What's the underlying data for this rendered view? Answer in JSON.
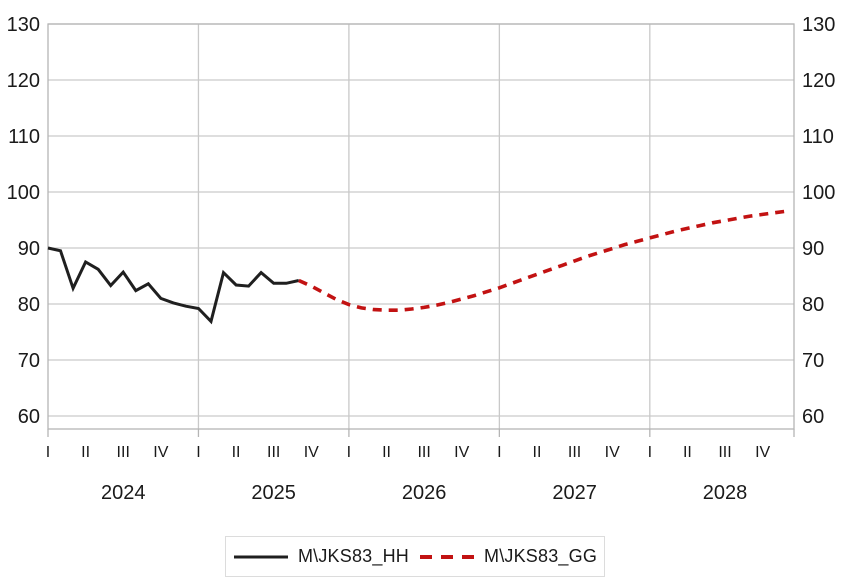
{
  "chart_data": {
    "type": "line",
    "title": "",
    "frequency": "monthly",
    "x_axis": {
      "quarter_tick_labels": [
        "I",
        "II",
        "III",
        "IV"
      ],
      "year_labels": [
        "2024",
        "2025",
        "2026",
        "2027",
        "2028"
      ],
      "start": "2024 Q1",
      "end": "2028 Q4"
    },
    "y_axis": {
      "min": 60,
      "max": 130,
      "step": 10,
      "tick_labels": [
        "130",
        "120",
        "110",
        "100",
        "90",
        "80",
        "70",
        "60"
      ],
      "labels_on_both_sides": true
    },
    "grid": true,
    "legend_position": "bottom",
    "series": [
      {
        "name": "M\\JKS83_HH",
        "style": "solid",
        "color": "#1f1f1f",
        "start_index": 0,
        "range": "2024M01-2025M09",
        "values": [
          90.0,
          89.5,
          82.8,
          87.5,
          86.2,
          83.3,
          85.7,
          82.4,
          83.6,
          81.0,
          80.2,
          79.6,
          79.2,
          76.9,
          85.6,
          83.4,
          83.2,
          85.6,
          83.7,
          83.7,
          84.2
        ]
      },
      {
        "name": "M\\JKS83_GG",
        "style": "dashed",
        "color": "#c21212",
        "start_index": 20,
        "range": "2025M09-2028M12",
        "values": [
          84.2,
          83.2,
          82.0,
          80.8,
          79.9,
          79.3,
          79.0,
          78.9,
          78.9,
          79.1,
          79.4,
          79.8,
          80.3,
          80.9,
          81.5,
          82.2,
          82.9,
          83.7,
          84.5,
          85.3,
          86.1,
          86.9,
          87.7,
          88.5,
          89.2,
          89.9,
          90.6,
          91.2,
          91.8,
          92.4,
          93.0,
          93.5,
          94.0,
          94.5,
          94.9,
          95.3,
          95.7,
          96.0,
          96.3,
          96.6
        ]
      }
    ]
  },
  "colors": {
    "grid": "#c9c9c9",
    "border": "#b5b5b5",
    "text": "#1a1a1a",
    "background": "#ffffff"
  }
}
